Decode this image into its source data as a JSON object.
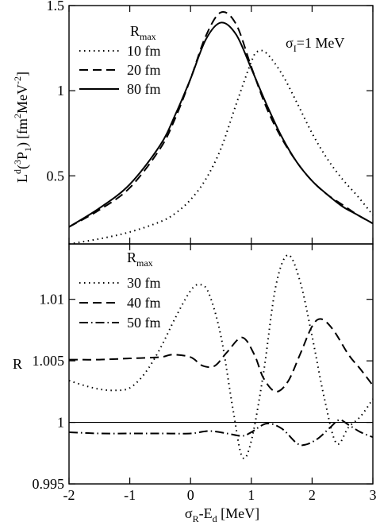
{
  "chart_data": [
    {
      "type": "line",
      "panel": "top",
      "ylabel_parts": {
        "base": "L",
        "sup1": "d",
        "paren_open": "(",
        "sup2": "3",
        "P": "P",
        "sub": "1",
        "paren_close": ")",
        "units_open": "[fm",
        "u1": "2",
        "mid": "MeV",
        "u2": "-2",
        "units_close": "]"
      },
      "annotation": {
        "base": "σ",
        "sub": "I",
        "rest": "=1 MeV"
      },
      "legend_title": {
        "base": "R",
        "sub": "max"
      },
      "xlim": [
        -2,
        3
      ],
      "ylim": [
        0.1,
        1.5
      ],
      "yticks": [
        0.5,
        1,
        1.5
      ],
      "yticklabels": [
        "0.5",
        "1",
        "1.5"
      ],
      "grid": false,
      "legend_position": "top-left",
      "series": [
        {
          "name": "10 fm",
          "dash": "dotted",
          "points": [
            [
              -2,
              0.1
            ],
            [
              -1.5,
              0.13
            ],
            [
              -1,
              0.17
            ],
            [
              -0.5,
              0.23
            ],
            [
              -0.25,
              0.28
            ],
            [
              0,
              0.36
            ],
            [
              0.25,
              0.48
            ],
            [
              0.5,
              0.66
            ],
            [
              0.75,
              0.92
            ],
            [
              1,
              1.17
            ],
            [
              1.1,
              1.23
            ],
            [
              1.25,
              1.22
            ],
            [
              1.5,
              1.1
            ],
            [
              1.75,
              0.93
            ],
            [
              2,
              0.75
            ],
            [
              2.25,
              0.6
            ],
            [
              2.5,
              0.48
            ],
            [
              2.75,
              0.38
            ],
            [
              3,
              0.27
            ]
          ]
        },
        {
          "name": "20 fm",
          "dash": "dashed",
          "points": [
            [
              -2,
              0.2
            ],
            [
              -1.5,
              0.3
            ],
            [
              -1,
              0.43
            ],
            [
              -0.5,
              0.66
            ],
            [
              -0.25,
              0.84
            ],
            [
              0,
              1.07
            ],
            [
              0.25,
              1.32
            ],
            [
              0.5,
              1.46
            ],
            [
              0.75,
              1.39
            ],
            [
              1,
              1.14
            ],
            [
              1.25,
              0.9
            ],
            [
              1.5,
              0.72
            ],
            [
              1.75,
              0.58
            ],
            [
              2,
              0.47
            ],
            [
              2.25,
              0.39
            ],
            [
              2.5,
              0.33
            ],
            [
              2.75,
              0.27
            ],
            [
              3,
              0.22
            ]
          ]
        },
        {
          "name": "80 fm",
          "dash": "solid",
          "points": [
            [
              -2,
              0.2
            ],
            [
              -1.5,
              0.31
            ],
            [
              -1,
              0.45
            ],
            [
              -0.5,
              0.68
            ],
            [
              -0.25,
              0.86
            ],
            [
              0,
              1.07
            ],
            [
              0.25,
              1.3
            ],
            [
              0.5,
              1.4
            ],
            [
              0.75,
              1.33
            ],
            [
              1,
              1.13
            ],
            [
              1.25,
              0.92
            ],
            [
              1.5,
              0.73
            ],
            [
              1.75,
              0.58
            ],
            [
              2,
              0.47
            ],
            [
              2.25,
              0.39
            ],
            [
              2.5,
              0.32
            ],
            [
              2.75,
              0.27
            ],
            [
              3,
              0.22
            ]
          ]
        }
      ]
    },
    {
      "type": "line",
      "panel": "bottom",
      "ylabel": "R",
      "xlabel_parts": {
        "base": "σ",
        "sub": "R",
        "rest": "-E",
        "sub2": "d",
        "units": " [MeV]"
      },
      "legend_title": {
        "base": "R",
        "sub": "max"
      },
      "xlim": [
        -2,
        3
      ],
      "ylim": [
        0.995,
        1.0145
      ],
      "xticks": [
        -2,
        -1,
        0,
        1,
        2,
        3
      ],
      "xticklabels": [
        "-2",
        "-1",
        "0",
        "1",
        "2",
        "3"
      ],
      "yticks": [
        0.995,
        1,
        1.005,
        1.01
      ],
      "yticklabels": [
        "0.995",
        "1",
        "1.005",
        "1.01"
      ],
      "reference_line": 1,
      "grid": false,
      "legend_position": "top-left",
      "series": [
        {
          "name": "30 fm",
          "dash": "dotted",
          "points": [
            [
              -2,
              1.0034
            ],
            [
              -1.75,
              1.003
            ],
            [
              -1.5,
              1.0027
            ],
            [
              -1.25,
              1.0026
            ],
            [
              -1,
              1.0028
            ],
            [
              -0.75,
              1.004
            ],
            [
              -0.5,
              1.006
            ],
            [
              -0.25,
              1.0085
            ],
            [
              0,
              1.0107
            ],
            [
              0.15,
              1.0112
            ],
            [
              0.3,
              1.0105
            ],
            [
              0.5,
              1.007
            ],
            [
              0.7,
              1.001
            ],
            [
              0.85,
              0.9972
            ],
            [
              1,
              0.9985
            ],
            [
              1.2,
              1.004
            ],
            [
              1.4,
              1.011
            ],
            [
              1.6,
              1.0136
            ],
            [
              1.8,
              1.0115
            ],
            [
              2,
              1.007
            ],
            [
              2.2,
              1.002
            ],
            [
              2.4,
              0.9983
            ],
            [
              2.6,
              0.9996
            ],
            [
              2.8,
              1.0005
            ],
            [
              3,
              1.0019
            ]
          ]
        },
        {
          "name": "40 fm",
          "dash": "dashed",
          "points": [
            [
              -2,
              1.0051
            ],
            [
              -1.5,
              1.0051
            ],
            [
              -1,
              1.0052
            ],
            [
              -0.5,
              1.0053
            ],
            [
              -0.3,
              1.0055
            ],
            [
              0,
              1.0053
            ],
            [
              0.2,
              1.0046
            ],
            [
              0.4,
              1.0046
            ],
            [
              0.6,
              1.0057
            ],
            [
              0.85,
              1.0069
            ],
            [
              1.05,
              1.0055
            ],
            [
              1.2,
              1.0036
            ],
            [
              1.4,
              1.0025
            ],
            [
              1.6,
              1.0033
            ],
            [
              1.8,
              1.0055
            ],
            [
              2,
              1.0078
            ],
            [
              2.15,
              1.0084
            ],
            [
              2.35,
              1.0075
            ],
            [
              2.6,
              1.0055
            ],
            [
              2.8,
              1.0043
            ],
            [
              3,
              1.003
            ]
          ]
        },
        {
          "name": "50 fm",
          "dash": "dashdot",
          "points": [
            [
              -2,
              0.9992
            ],
            [
              -1.5,
              0.9991
            ],
            [
              -1,
              0.9991
            ],
            [
              -0.5,
              0.9991
            ],
            [
              0,
              0.9991
            ],
            [
              0.3,
              0.9993
            ],
            [
              0.6,
              0.9991
            ],
            [
              0.85,
              0.9989
            ],
            [
              1,
              0.9992
            ],
            [
              1.25,
              0.9999
            ],
            [
              1.5,
              0.9995
            ],
            [
              1.75,
              0.9983
            ],
            [
              1.9,
              0.9982
            ],
            [
              2.1,
              0.9987
            ],
            [
              2.3,
              0.9996
            ],
            [
              2.45,
              1.0002
            ],
            [
              2.6,
              0.9998
            ],
            [
              2.8,
              0.9992
            ],
            [
              3,
              0.9988
            ]
          ]
        }
      ]
    }
  ]
}
